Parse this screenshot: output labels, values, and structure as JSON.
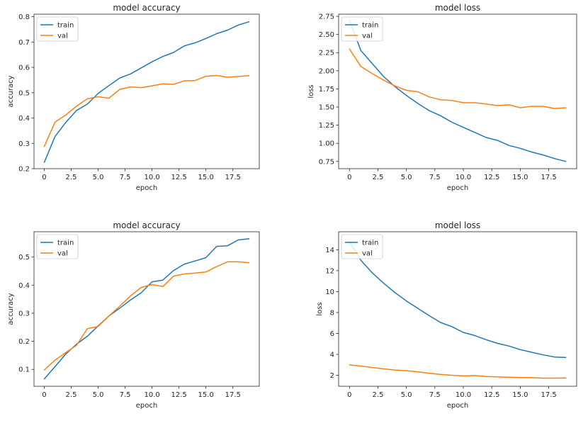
{
  "colors": {
    "train": "#1f77b4",
    "val": "#ff7f0e",
    "axis": "#262626",
    "legend_border": "#cccccc"
  },
  "chart_data": [
    {
      "type": "line",
      "title": "model accuracy",
      "xlabel": "epoch",
      "ylabel": "accuracy",
      "xlim": [
        -0.95,
        19.95
      ],
      "ylim": [
        0.2,
        0.81
      ],
      "xticks": [
        0,
        2.5,
        5,
        7.5,
        10,
        12.5,
        15,
        17.5
      ],
      "xtick_labels": [
        "0",
        "2.5",
        "5.0",
        "7.5",
        "10.0",
        "12.5",
        "15.0",
        "17.5"
      ],
      "yticks": [
        0.2,
        0.3,
        0.4,
        0.5,
        0.6,
        0.7,
        0.8
      ],
      "ytick_labels": [
        "0.2",
        "0.3",
        "0.4",
        "0.5",
        "0.6",
        "0.7",
        "0.8"
      ],
      "legend": "upper-left",
      "x": [
        0,
        1,
        2,
        3,
        4,
        5,
        6,
        7,
        8,
        9,
        10,
        11,
        12,
        13,
        14,
        15,
        16,
        17,
        18,
        19
      ],
      "series": [
        {
          "name": "train",
          "values": [
            0.225,
            0.327,
            0.383,
            0.43,
            0.455,
            0.497,
            0.528,
            0.558,
            0.574,
            0.598,
            0.622,
            0.643,
            0.659,
            0.685,
            0.697,
            0.714,
            0.733,
            0.747,
            0.767,
            0.78
          ]
        },
        {
          "name": "val",
          "values": [
            0.288,
            0.384,
            0.412,
            0.447,
            0.476,
            0.484,
            0.478,
            0.513,
            0.523,
            0.52,
            0.527,
            0.535,
            0.533,
            0.547,
            0.548,
            0.565,
            0.568,
            0.561,
            0.564,
            0.567
          ]
        }
      ]
    },
    {
      "type": "line",
      "title": "model loss",
      "xlabel": "epoch",
      "ylabel": "loss",
      "xlim": [
        -0.95,
        19.95
      ],
      "ylim": [
        0.65,
        2.78
      ],
      "xticks": [
        0,
        2.5,
        5,
        7.5,
        10,
        12.5,
        15,
        17.5
      ],
      "xtick_labels": [
        "0",
        "2.5",
        "5.0",
        "7.5",
        "10.0",
        "12.5",
        "15.0",
        "17.5"
      ],
      "yticks": [
        0.75,
        1.0,
        1.25,
        1.5,
        1.75,
        2.0,
        2.25,
        2.5,
        2.75
      ],
      "ytick_labels": [
        "0.75",
        "1.00",
        "1.25",
        "1.50",
        "1.75",
        "2.00",
        "2.25",
        "2.50",
        "2.75"
      ],
      "legend": "upper-left",
      "x": [
        0,
        1,
        2,
        3,
        4,
        5,
        6,
        7,
        8,
        9,
        10,
        11,
        12,
        13,
        14,
        15,
        16,
        17,
        18,
        19
      ],
      "series": [
        {
          "name": "train",
          "values": [
            2.7,
            2.28,
            2.1,
            1.92,
            1.78,
            1.66,
            1.55,
            1.45,
            1.38,
            1.29,
            1.22,
            1.15,
            1.08,
            1.04,
            0.97,
            0.93,
            0.88,
            0.84,
            0.79,
            0.75
          ]
        },
        {
          "name": "val",
          "values": [
            2.3,
            2.06,
            1.96,
            1.87,
            1.79,
            1.73,
            1.71,
            1.64,
            1.6,
            1.59,
            1.56,
            1.56,
            1.54,
            1.52,
            1.53,
            1.49,
            1.51,
            1.51,
            1.48,
            1.49
          ]
        }
      ]
    },
    {
      "type": "line",
      "title": "model accuracy",
      "xlabel": "epoch",
      "ylabel": "accuracy",
      "xlim": [
        -0.95,
        19.95
      ],
      "ylim": [
        0.04,
        0.59
      ],
      "xticks": [
        0,
        2.5,
        5,
        7.5,
        10,
        12.5,
        15,
        17.5
      ],
      "xtick_labels": [
        "0",
        "2.5",
        "5.0",
        "7.5",
        "10.0",
        "12.5",
        "15.0",
        "17.5"
      ],
      "yticks": [
        0.1,
        0.2,
        0.3,
        0.4,
        0.5
      ],
      "ytick_labels": [
        "0.1",
        "0.2",
        "0.3",
        "0.4",
        "0.5"
      ],
      "legend": "upper-left",
      "x": [
        0,
        1,
        2,
        3,
        4,
        5,
        6,
        7,
        8,
        9,
        10,
        11,
        12,
        13,
        14,
        15,
        16,
        17,
        18,
        19
      ],
      "series": [
        {
          "name": "train",
          "values": [
            0.066,
            0.11,
            0.155,
            0.19,
            0.218,
            0.255,
            0.29,
            0.318,
            0.347,
            0.373,
            0.412,
            0.418,
            0.452,
            0.475,
            0.486,
            0.498,
            0.538,
            0.54,
            0.561,
            0.565
          ]
        },
        {
          "name": "val",
          "values": [
            0.098,
            0.133,
            0.16,
            0.186,
            0.245,
            0.253,
            0.29,
            0.325,
            0.362,
            0.392,
            0.402,
            0.395,
            0.432,
            0.44,
            0.443,
            0.447,
            0.466,
            0.483,
            0.483,
            0.48
          ]
        }
      ]
    },
    {
      "type": "line",
      "title": "model loss",
      "xlabel": "epoch",
      "ylabel": "loss",
      "xlim": [
        -0.95,
        19.95
      ],
      "ylim": [
        0.95,
        15.72
      ],
      "xticks": [
        0,
        2.5,
        5,
        7.5,
        10,
        12.5,
        15,
        17.5
      ],
      "xtick_labels": [
        "0",
        "2.5",
        "5.0",
        "7.5",
        "10.0",
        "12.5",
        "15.0",
        "17.5"
      ],
      "yticks": [
        2,
        4,
        6,
        8,
        10,
        12,
        14
      ],
      "ytick_labels": [
        "2",
        "4",
        "6",
        "8",
        "10",
        "12",
        "14"
      ],
      "legend": "upper-left",
      "x": [
        0,
        1,
        2,
        3,
        4,
        5,
        6,
        7,
        8,
        9,
        10,
        11,
        12,
        13,
        14,
        15,
        16,
        17,
        18,
        19
      ],
      "series": [
        {
          "name": "train",
          "values": [
            14.8,
            13.0,
            11.8,
            10.8,
            9.9,
            9.1,
            8.4,
            7.7,
            7.05,
            6.65,
            6.1,
            5.8,
            5.4,
            5.05,
            4.8,
            4.45,
            4.2,
            3.95,
            3.75,
            3.7
          ]
        },
        {
          "name": "val",
          "values": [
            3.0,
            2.88,
            2.74,
            2.62,
            2.5,
            2.44,
            2.33,
            2.2,
            2.08,
            2.0,
            1.94,
            1.97,
            1.88,
            1.85,
            1.82,
            1.79,
            1.77,
            1.73,
            1.73,
            1.74
          ]
        }
      ]
    }
  ]
}
